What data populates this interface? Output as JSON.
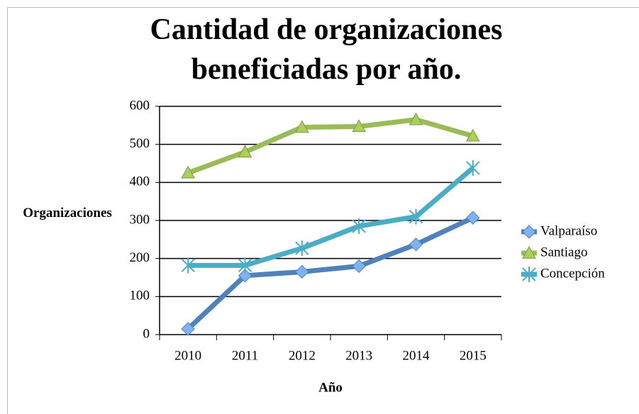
{
  "chart_data": {
    "type": "line",
    "title": "Cantidad de organizaciones beneficiadas por año.",
    "x_label": "Año",
    "y_label": "Organizaciones",
    "categories": [
      "2010",
      "2011",
      "2012",
      "2013",
      "2014",
      "2015"
    ],
    "series": [
      {
        "name": "Valparaíso",
        "color": "#4f81bd",
        "marker": "diamond",
        "values": [
          15,
          155,
          165,
          180,
          237,
          307
        ]
      },
      {
        "name": "Santiago",
        "color": "#9bbb59",
        "marker": "triangle",
        "values": [
          425,
          480,
          545,
          547,
          565,
          522
        ]
      },
      {
        "name": "Concepción",
        "color": "#4bacc6",
        "marker": "star",
        "values": [
          182,
          182,
          227,
          285,
          310,
          438
        ]
      }
    ],
    "ylim": [
      0,
      600
    ],
    "yticks": [
      0,
      100,
      200,
      300,
      400,
      500,
      600
    ],
    "grid": true,
    "legend": "right"
  }
}
